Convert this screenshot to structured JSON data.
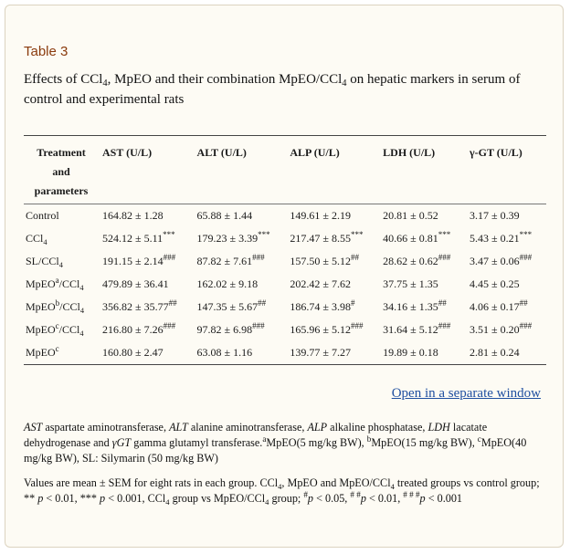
{
  "label": "Table 3",
  "caption": {
    "p1": "Effects of CCl",
    "s1": "4",
    "p2": ", MpEO and their combination MpEO/CCl",
    "s2": "4",
    "p3": " on hepatic markers in serum of control and experimental rats"
  },
  "headers": [
    {
      "lines": [
        "Treatment",
        "and",
        "parameters"
      ]
    },
    {
      "lines": [
        "AST (U/L)"
      ]
    },
    {
      "lines": [
        "ALT (U/L)"
      ]
    },
    {
      "lines": [
        "ALP (U/L)"
      ]
    },
    {
      "lines": [
        "LDH (U/L)"
      ]
    },
    {
      "lines": [
        "γ-GT (U/L)"
      ]
    }
  ],
  "rows": [
    {
      "name": {
        "a": "Control",
        "sup": "",
        "b": "",
        "sub": ""
      },
      "cells": [
        {
          "v": "164.82 ± 1.28",
          "sup": ""
        },
        {
          "v": "65.88 ± 1.44",
          "sup": ""
        },
        {
          "v": "149.61 ± 2.19",
          "sup": ""
        },
        {
          "v": "20.81 ± 0.52",
          "sup": ""
        },
        {
          "v": "3.17 ± 0.39",
          "sup": ""
        }
      ]
    },
    {
      "name": {
        "a": "CCl",
        "sup": "",
        "b": "",
        "sub": "4"
      },
      "cells": [
        {
          "v": "524.12 ± 5.11",
          "sup": "***"
        },
        {
          "v": "179.23 ± 3.39",
          "sup": "***"
        },
        {
          "v": "217.47 ± 8.55",
          "sup": "***"
        },
        {
          "v": "40.66 ± 0.81",
          "sup": "***"
        },
        {
          "v": "5.43 ± 0.21",
          "sup": "***"
        }
      ]
    },
    {
      "name": {
        "a": "SL/CCl",
        "sup": "",
        "b": "",
        "sub": "4"
      },
      "cells": [
        {
          "v": "191.15 ± 2.14",
          "sup": "###"
        },
        {
          "v": "87.82 ± 7.61",
          "sup": "###"
        },
        {
          "v": "157.50 ± 5.12",
          "sup": "##"
        },
        {
          "v": "28.62 ± 0.62",
          "sup": "###"
        },
        {
          "v": "3.47 ± 0.06",
          "sup": "###"
        }
      ]
    },
    {
      "name": {
        "a": "MpEO",
        "sup": "a",
        "b": "/CCl",
        "sub": "4"
      },
      "cells": [
        {
          "v": "479.89 ± 36.41",
          "sup": ""
        },
        {
          "v": "162.02 ± 9.18",
          "sup": ""
        },
        {
          "v": "202.42 ± 7.62",
          "sup": ""
        },
        {
          "v": "37.75 ± 1.35",
          "sup": ""
        },
        {
          "v": "4.45 ± 0.25",
          "sup": ""
        }
      ]
    },
    {
      "name": {
        "a": "MpEO",
        "sup": "b",
        "b": "/CCl",
        "sub": "4"
      },
      "cells": [
        {
          "v": "356.82 ± 35.77",
          "sup": "##"
        },
        {
          "v": "147.35 ± 5.67",
          "sup": "##"
        },
        {
          "v": "186.74 ± 3.98",
          "sup": "#"
        },
        {
          "v": "34.16 ± 1.35",
          "sup": "##"
        },
        {
          "v": "4.06 ± 0.17",
          "sup": "##"
        }
      ]
    },
    {
      "name": {
        "a": "MpEO",
        "sup": "c",
        "b": "/CCl",
        "sub": "4"
      },
      "cells": [
        {
          "v": "216.80 ± 7.26",
          "sup": "###"
        },
        {
          "v": "97.82 ± 6.98",
          "sup": "###"
        },
        {
          "v": "165.96 ± 5.12",
          "sup": "###"
        },
        {
          "v": "31.64 ± 5.12",
          "sup": "###"
        },
        {
          "v": "3.51 ± 0.20",
          "sup": "###"
        }
      ]
    },
    {
      "name": {
        "a": "MpEO",
        "sup": "c",
        "b": "",
        "sub": ""
      },
      "cells": [
        {
          "v": "160.80 ± 2.47",
          "sup": ""
        },
        {
          "v": "63.08 ± 1.16",
          "sup": ""
        },
        {
          "v": "139.77 ± 7.27",
          "sup": ""
        },
        {
          "v": "19.89 ± 0.18",
          "sup": ""
        },
        {
          "v": "2.81 ± 0.24",
          "sup": ""
        }
      ]
    }
  ],
  "open_link": "Open in a separate window",
  "footnote1": {
    "ast": "AST",
    "t1": " aspartate aminotransferase, ",
    "alt": "ALT",
    "t2": " alanine aminotransferase, ",
    "alp": "ALP",
    "t3": " alkaline phosphatase, ",
    "ldh": "LDH",
    "t4": " lacatate dehydrogenase and ",
    "ggt": "γGT",
    "t5": " gamma glutamyl transferase.",
    "sa": "a",
    "t6": "MpEO(5 mg/kg BW), ",
    "sb": "b",
    "t7": "MpEO(15 mg/kg BW), ",
    "sc": "c",
    "t8": "MpEO(40 mg/kg BW), SL: Silymarin (50 mg/kg BW)"
  },
  "footnote2": {
    "t1": "Values are mean ± SEM for eight rats in each group. CCl",
    "s1": "4",
    "t2": ", MpEO and MpEO/CCl",
    "s2": "4",
    "t3": " treated groups vs control group; ** ",
    "p1": "p",
    "t4": " < 0.01, *** ",
    "p2": "p",
    "t5": " < 0.001, CCl",
    "s3": "4",
    "t6": " group vs MpEO/CCl",
    "s4": "4",
    "t7": " group; ",
    "h1": "#",
    "p3": "p",
    "t8": " < 0.05, ",
    "h2": "# #",
    "p4": "p",
    "t9": " < 0.01, ",
    "h3": "# # #",
    "p5": "p",
    "t10": " < 0.001"
  }
}
